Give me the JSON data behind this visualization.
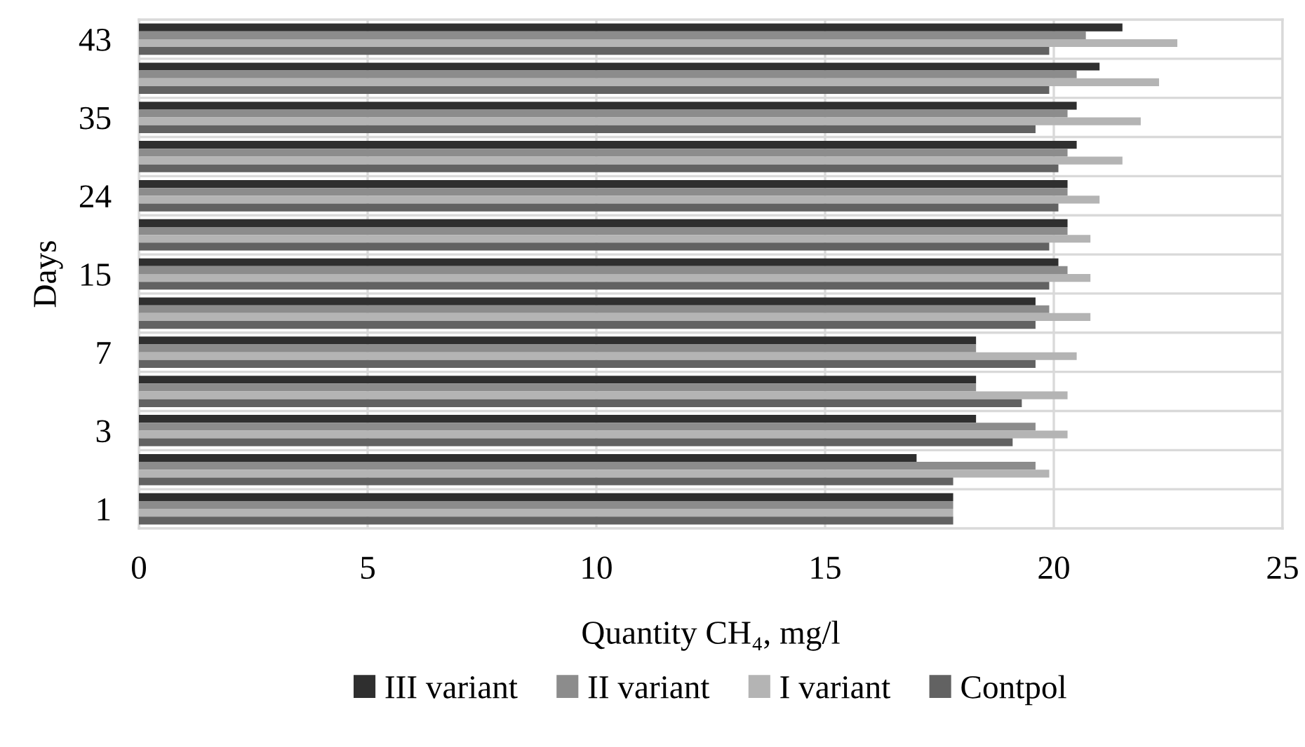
{
  "chart_data": {
    "type": "bar",
    "orientation": "horizontal",
    "xlabel": "Quantity CH₄, mg/l",
    "ylabel": "Days",
    "categories": [
      "43",
      null,
      "35",
      null,
      "24",
      null,
      "15",
      null,
      "7",
      null,
      "3",
      null,
      "1"
    ],
    "series": [
      {
        "name": "III variant",
        "color": "#2f2f2f",
        "values": [
          21.5,
          21.0,
          20.5,
          20.5,
          20.3,
          20.3,
          20.1,
          19.6,
          18.3,
          18.3,
          18.3,
          17.0,
          17.8
        ]
      },
      {
        "name": "II variant",
        "color": "#8c8c8c",
        "values": [
          20.7,
          20.5,
          20.3,
          20.3,
          20.3,
          20.3,
          20.3,
          19.9,
          18.3,
          18.3,
          19.6,
          19.6,
          17.8
        ]
      },
      {
        "name": "I variant",
        "color": "#b4b4b4",
        "values": [
          22.7,
          22.3,
          21.9,
          21.5,
          21.0,
          20.8,
          20.8,
          20.8,
          20.5,
          20.3,
          20.3,
          19.9,
          17.8
        ]
      },
      {
        "name": "Contpol",
        "color": "#626262",
        "values": [
          19.9,
          19.9,
          19.6,
          20.1,
          20.1,
          19.9,
          19.9,
          19.6,
          19.6,
          19.3,
          19.1,
          17.8,
          17.8
        ]
      }
    ],
    "xlim": [
      0,
      25
    ],
    "xticks": [
      0,
      5,
      10,
      15,
      20,
      25
    ],
    "grid": true,
    "legend": "bottom"
  }
}
